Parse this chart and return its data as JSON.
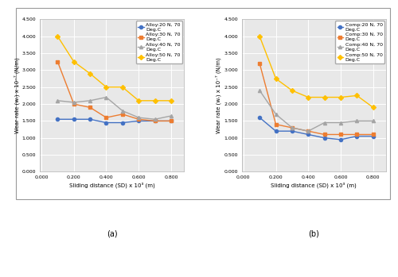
{
  "x": [
    0.1,
    0.2,
    0.3,
    0.4,
    0.5,
    0.6,
    0.7,
    0.8
  ],
  "alloy": {
    "20N": [
      1.55,
      1.55,
      1.55,
      1.45,
      1.45,
      1.5,
      1.5,
      1.5
    ],
    "30N": [
      3.25,
      2.0,
      1.9,
      1.6,
      1.7,
      1.55,
      1.5,
      1.5
    ],
    "40N": [
      2.1,
      2.05,
      2.1,
      2.2,
      1.8,
      1.6,
      1.55,
      1.65
    ],
    "50N": [
      4.0,
      3.25,
      2.9,
      2.5,
      2.5,
      2.1,
      2.1,
      2.1
    ]
  },
  "composite": {
    "20N": [
      1.6,
      1.2,
      1.2,
      1.1,
      1.0,
      0.95,
      1.05,
      1.05
    ],
    "30N": [
      3.2,
      1.4,
      1.3,
      1.2,
      1.1,
      1.1,
      1.1,
      1.1
    ],
    "40N": [
      2.4,
      1.7,
      1.3,
      1.2,
      1.45,
      1.45,
      1.5,
      1.5
    ],
    "50N": [
      4.0,
      2.75,
      2.4,
      2.2,
      2.2,
      2.2,
      2.25,
      1.9
    ]
  },
  "colors": {
    "20N": "#4472C4",
    "30N": "#ED7D31",
    "40N": "#A5A5A5",
    "50N": "#FFC000"
  },
  "markers": {
    "20N": "o",
    "30N": "s",
    "40N": "^",
    "50N": "D"
  },
  "ylim": [
    0.0,
    4.5
  ],
  "yticks": [
    0.0,
    0.5,
    1.0,
    1.5,
    2.0,
    2.5,
    3.0,
    3.5,
    4.0,
    4.5
  ],
  "xticks": [
    0.0,
    0.2,
    0.4,
    0.6,
    0.8
  ],
  "xlabel": "Sliding distance (SD) x 10³ (m)",
  "ylabel_a": "Wear rate (wᵣ) x 10⁻⁷ (N/m)",
  "ylabel_b": "Wear rate (wᵣ) x 10⁻⁷ (N/m)",
  "legend_labels_a": {
    "20N": "Alloy:20 N, 70\nDeg.C",
    "30N": "Alloy:30 N, 70\nDeg.C",
    "40N": "Alloy:40 N, 70\nDeg.C",
    "50N": "Alloy:50 N, 70\nDeg.C"
  },
  "legend_labels_b": {
    "20N": "Comp:20 N, 70\nDeg.C",
    "30N": "Comp:30 N, 70\nDeg.C",
    "40N": "Comp:40 N, 70\nDeg.C",
    "50N": "Comp:50 N, 70\nDeg.C"
  },
  "subplot_labels": [
    "(a)",
    "(b)"
  ],
  "bg_color": "#e8e8e8",
  "grid_color": "#ffffff",
  "linewidth": 1.0,
  "markersize": 3,
  "fontsize_axis_label": 5.0,
  "fontsize_tick": 4.5,
  "fontsize_legend": 4.5,
  "fontsize_subplot_label": 7
}
